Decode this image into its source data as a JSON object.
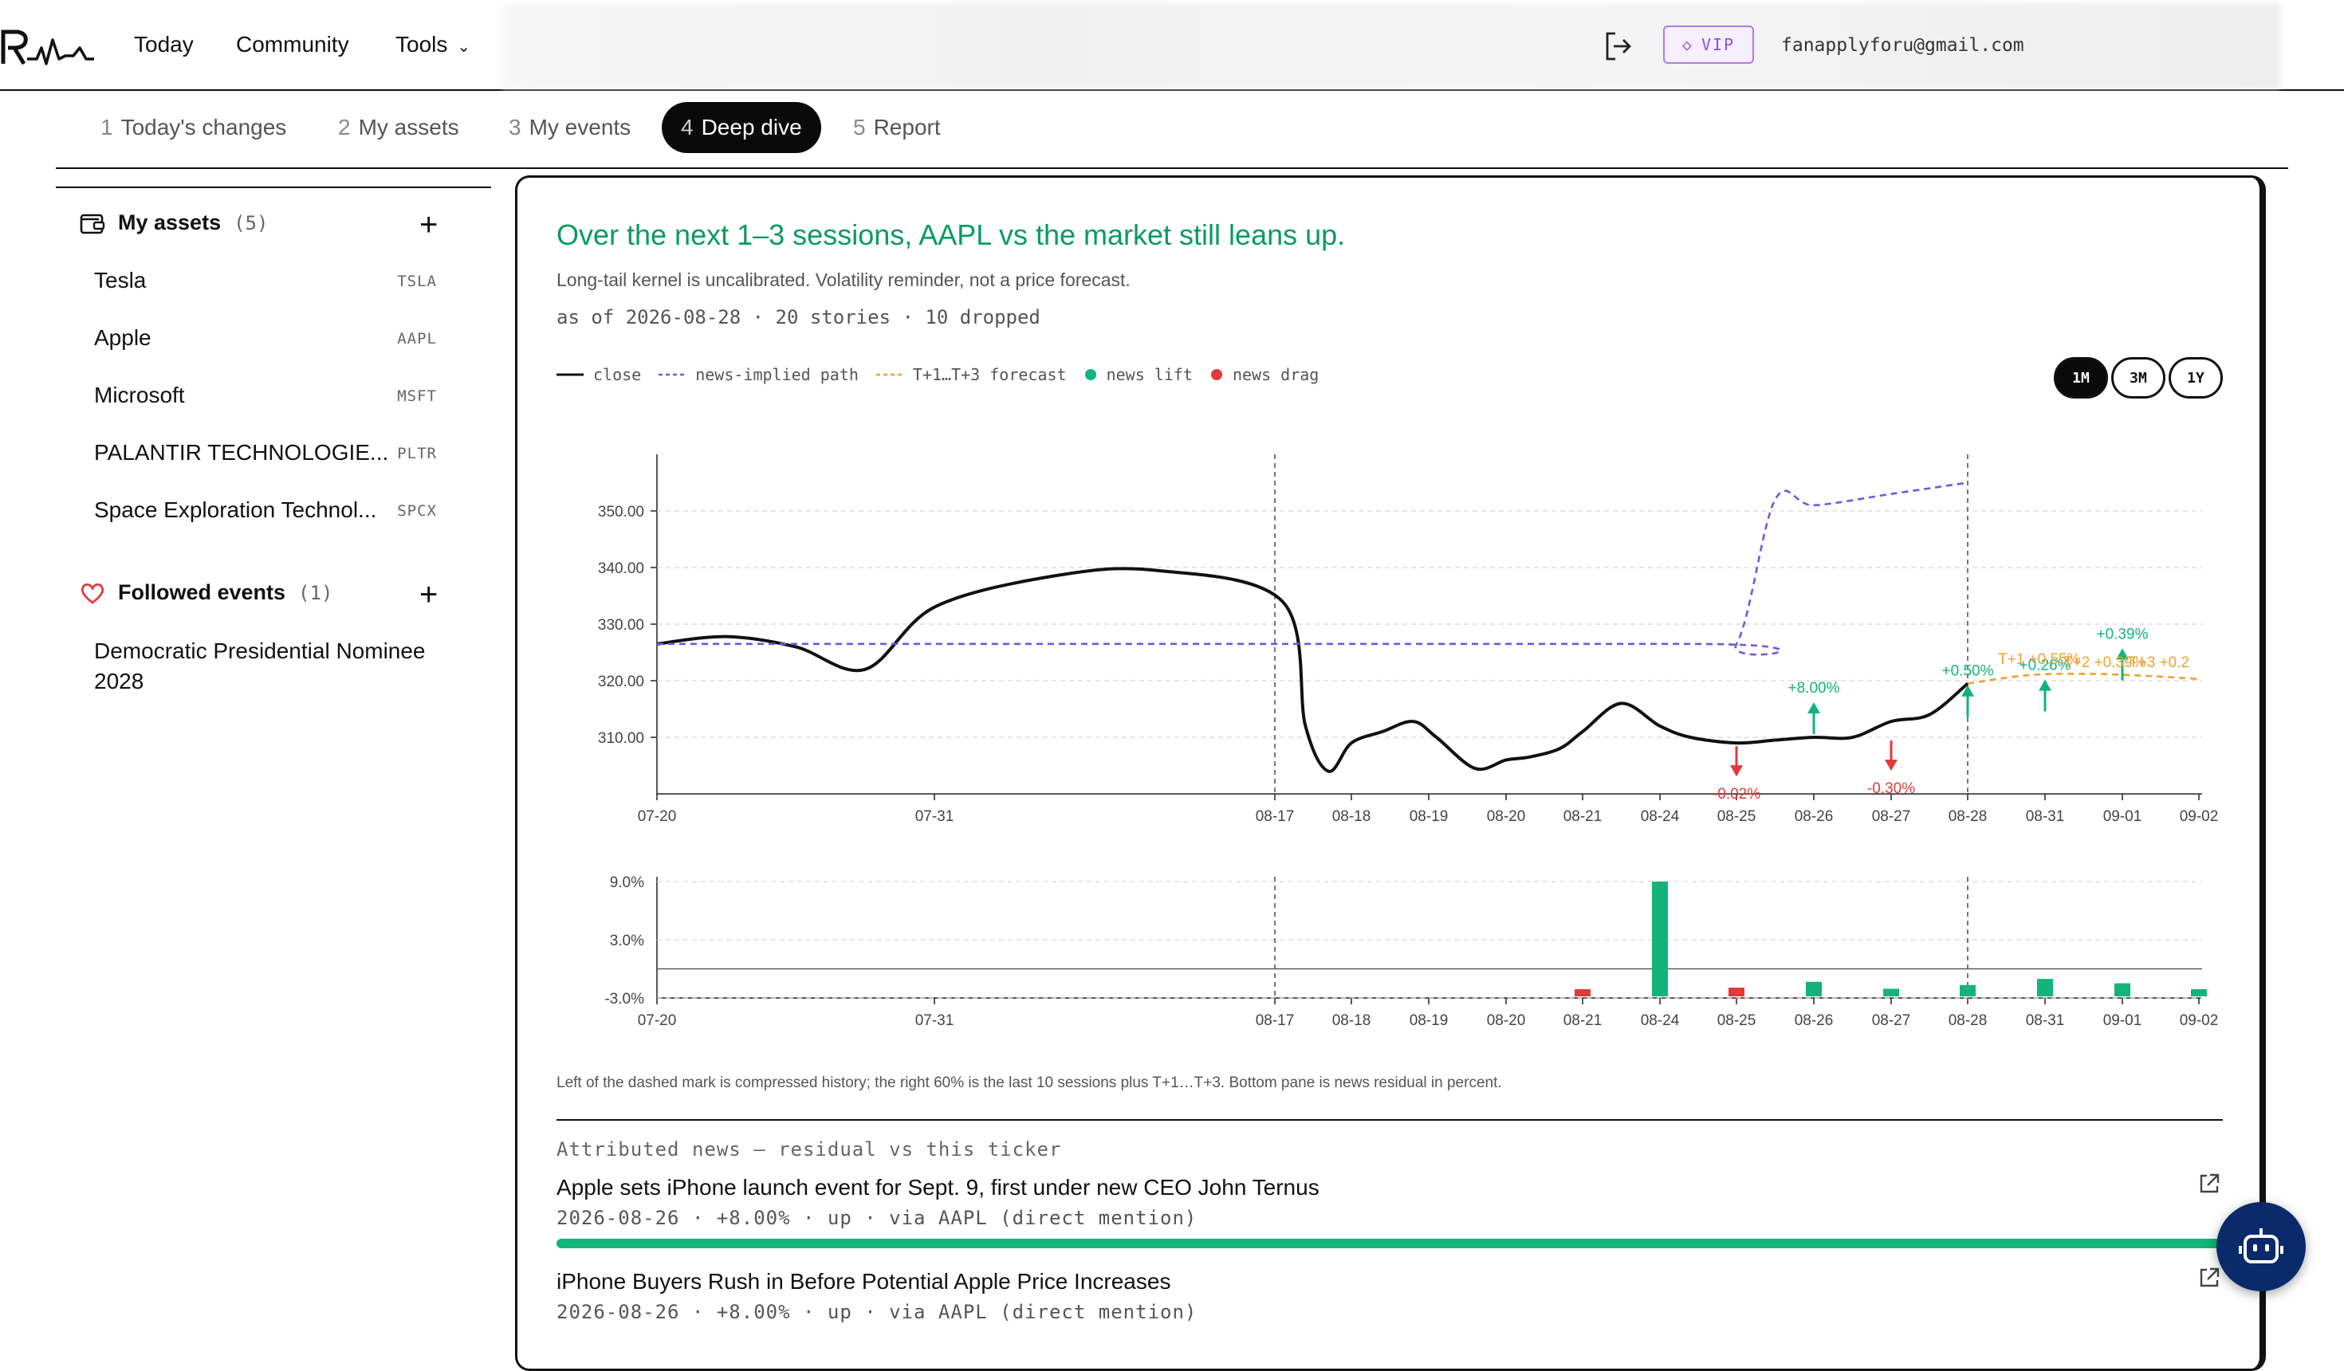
{
  "nav": {
    "links": [
      "Today",
      "Community",
      "Tools"
    ],
    "vip_label": "VIP",
    "email": "fanapplyforu@gmail.com"
  },
  "steps": [
    {
      "n": "1",
      "label": "Today's changes"
    },
    {
      "n": "2",
      "label": "My assets"
    },
    {
      "n": "3",
      "label": "My events"
    },
    {
      "n": "4",
      "label": "Deep dive"
    },
    {
      "n": "5",
      "label": "Report"
    }
  ],
  "active_step": 3,
  "sidebar": {
    "assets_title": "My assets",
    "assets_count": "(5)",
    "assets": [
      {
        "name": "Tesla",
        "ticker": "TSLA"
      },
      {
        "name": "Apple",
        "ticker": "AAPL"
      },
      {
        "name": "Microsoft",
        "ticker": "MSFT"
      },
      {
        "name": "PALANTIR TECHNOLOGIE...",
        "ticker": "PLTR"
      },
      {
        "name": "Space Exploration Technol...",
        "ticker": "SPCX"
      }
    ],
    "events_title": "Followed events",
    "events_count": "(1)",
    "events": [
      "Democratic Presidential Nominee 2028"
    ]
  },
  "main": {
    "headline": "Over the next 1–3 sessions, AAPL vs the market still leans up.",
    "subline": "Long-tail kernel is uncalibrated. Volatility reminder, not a price forecast.",
    "meta": "as of 2026-08-28 · 20 stories · 10 dropped",
    "legend": [
      "close",
      "news-implied path",
      "T+1…T+3 forecast",
      "news lift",
      "news drag"
    ],
    "ranges": [
      "1M",
      "3M",
      "1Y"
    ],
    "active_range": "1M",
    "chart_note": "Left of the dashed mark is compressed history; the right 60% is the last 10 sessions plus T+1…T+3. Bottom pane is news residual in percent.",
    "news_header": "Attributed news — residual vs this ticker",
    "news": [
      {
        "title": "Apple sets iPhone launch event for Sept. 9, first under new CEO John Ternus",
        "meta": "2026-08-26 · +8.00% · up · via AAPL (direct mention)",
        "strength": 1.0
      },
      {
        "title": "iPhone Buyers Rush in Before Potential Apple Price Increases",
        "meta": "2026-08-26 · +8.00% · up · via AAPL (direct mention)",
        "strength": 1.0
      }
    ]
  },
  "colors": {
    "close": "#111111",
    "implied": "#6a5ae0",
    "forecast": "#f0a030",
    "lift": "#12b47a",
    "drag": "#e03a3a",
    "headline": "#0a9b62"
  },
  "chart_data": [
    {
      "type": "line",
      "x_ticks": [
        "07-20",
        "07-31",
        "08-17",
        "08-18",
        "08-19",
        "08-20",
        "08-21",
        "08-24",
        "08-25",
        "08-26",
        "08-27",
        "08-28",
        "08-31",
        "09-01",
        "09-02"
      ],
      "ylim": [
        300,
        360
      ],
      "y_ticks": [
        "310.00",
        "320.00",
        "330.00",
        "340.00",
        "350.00"
      ],
      "dashed_marks": [
        "08-17",
        "08-28"
      ],
      "series": [
        {
          "name": "close",
          "points": [
            [
              0,
              326.5
            ],
            [
              0.25,
              327.8
            ],
            [
              0.5,
              326
            ],
            [
              0.75,
              322
            ],
            [
              1,
              333
            ],
            [
              1.35,
              338.5
            ],
            [
              1.65,
              339.5
            ],
            [
              2.1,
              334
            ],
            [
              2.4,
              312
            ],
            [
              2.7,
              304
            ],
            [
              3.0,
              309
            ],
            [
              3.4,
              311
            ],
            [
              3.8,
              312.8
            ],
            [
              4.1,
              310
            ],
            [
              4.6,
              304.5
            ],
            [
              5.0,
              306
            ],
            [
              5.3,
              306.5
            ],
            [
              5.7,
              308
            ],
            [
              6,
              311
            ],
            [
              6.5,
              316
            ],
            [
              7,
              312
            ],
            [
              7.4,
              310
            ],
            [
              8,
              309
            ],
            [
              8.5,
              309.5
            ],
            [
              9,
              310
            ],
            [
              9.5,
              310
            ],
            [
              10,
              312.8
            ],
            [
              10.5,
              314
            ],
            [
              11,
              319.5
            ]
          ]
        },
        {
          "name": "news-implied path",
          "points": [
            [
              0,
              326.5
            ],
            [
              7.4,
              326.5
            ],
            [
              8,
              326.5
            ],
            [
              8.5,
              352
            ],
            [
              9,
              351
            ],
            [
              10,
              353
            ],
            [
              11,
              355
            ]
          ]
        },
        {
          "name": "T+1…T+3 forecast",
          "points": [
            [
              11,
              319.5
            ],
            [
              11.8,
              321
            ],
            [
              12.6,
              321.2
            ],
            [
              13.4,
              320.8
            ],
            [
              14.2,
              320.3
            ]
          ]
        }
      ],
      "annotations": [
        {
          "x": 8,
          "y": 309,
          "text": "-0.02%",
          "kind": "drag"
        },
        {
          "x": 9,
          "y": 310,
          "text": "+8.00%",
          "kind": "lift"
        },
        {
          "x": 10,
          "y": 310,
          "text": "-0.30%",
          "kind": "drag"
        },
        {
          "x": 11,
          "y": 313,
          "text": "+0.50%",
          "kind": "lift"
        },
        {
          "x": 12,
          "y": 314,
          "text": "+0.26%",
          "kind": "lift"
        },
        {
          "x": 13,
          "y": 319.5,
          "text": "+0.39%",
          "kind": "lift"
        }
      ],
      "forecast_labels": [
        "T+1 +0.55%",
        "T+2 +0.39%",
        "T+3 +0.2"
      ]
    },
    {
      "type": "bar",
      "x_ticks": [
        "07-20",
        "07-31",
        "08-17",
        "08-18",
        "08-19",
        "08-20",
        "08-21",
        "08-24",
        "08-25",
        "08-26",
        "08-27",
        "08-28",
        "08-31",
        "09-01",
        "09-02"
      ],
      "ylim": [
        -3.0,
        9.0
      ],
      "y_ticks": [
        "9.0%",
        "3.0%",
        "-3.0%"
      ],
      "values": [
        [
          8,
          -0.02
        ],
        [
          9,
          8.0
        ],
        [
          10,
          -0.3
        ],
        [
          11,
          0.5
        ],
        [
          12,
          0.26
        ],
        [
          13,
          0.39
        ],
        [
          14,
          0.6
        ],
        [
          15,
          0.45
        ],
        [
          16,
          0.2
        ]
      ]
    }
  ]
}
